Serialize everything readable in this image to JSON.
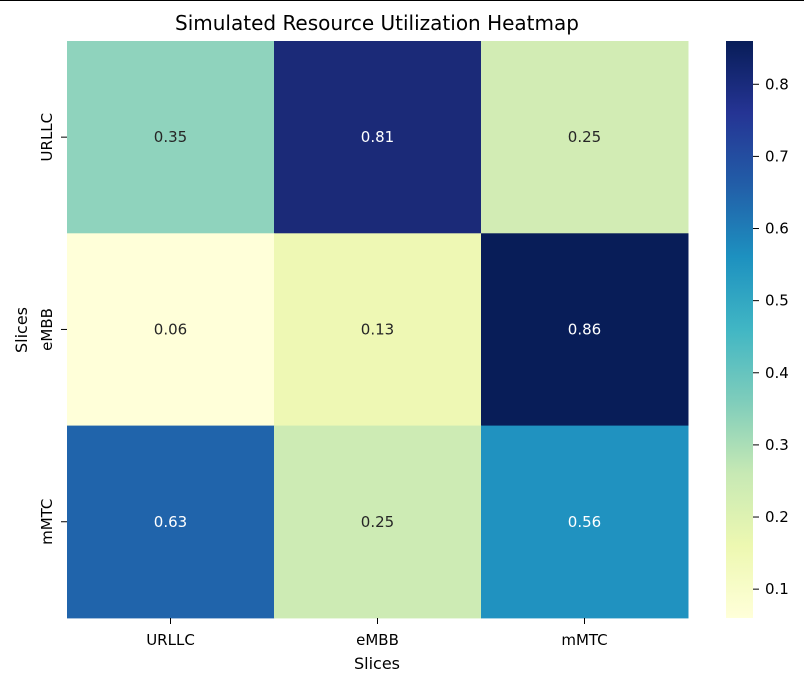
{
  "chart_data": {
    "type": "heatmap",
    "title": "Simulated Resource Utilization Heatmap",
    "xlabel": "Slices",
    "ylabel": "Slices",
    "x_categories": [
      "URLLC",
      "eMBB",
      "mMTC"
    ],
    "y_categories": [
      "URLLC",
      "eMBB",
      "mMTC"
    ],
    "values": [
      [
        0.35,
        0.81,
        0.25
      ],
      [
        0.06,
        0.13,
        0.86
      ],
      [
        0.63,
        0.25,
        0.56
      ]
    ],
    "annotations": [
      [
        "0.35",
        "0.81",
        "0.25"
      ],
      [
        "0.06",
        "0.13",
        "0.86"
      ],
      [
        "0.63",
        "0.25",
        "0.56"
      ]
    ],
    "colormap": "YlGnBu",
    "colorbar": {
      "range": [
        0.06,
        0.86
      ],
      "ticks": [
        0.1,
        0.2,
        0.3,
        0.4,
        0.5,
        0.6,
        0.7,
        0.8
      ],
      "tick_labels": [
        "0.1",
        "0.2",
        "0.3",
        "0.4",
        "0.5",
        "0.6",
        "0.7",
        "0.8"
      ]
    },
    "cell_colors": [
      [
        "#8fd3bd",
        "#1b2a78",
        "#d2ecb4"
      ],
      [
        "#ffffd9",
        "#eef8b4",
        "#081d58"
      ],
      [
        "#2064ab",
        "#cdebb4",
        "#2092c0"
      ]
    ],
    "annotation_colors": [
      [
        "#262626",
        "#ffffff",
        "#262626"
      ],
      [
        "#262626",
        "#262626",
        "#ffffff"
      ],
      [
        "#ffffff",
        "#262626",
        "#ffffff"
      ]
    ]
  }
}
